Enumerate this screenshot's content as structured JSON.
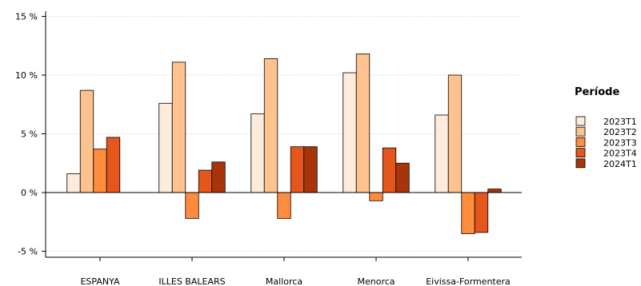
{
  "chart_data": {
    "type": "bar",
    "categories": [
      "ESPANYA",
      "ILLES BALEARS",
      "Mallorca",
      "Menorca",
      "Eivissa-Formentera"
    ],
    "series": [
      {
        "name": "2023T1",
        "color": "#fdebdc",
        "values": [
          1.6,
          7.6,
          6.7,
          10.2,
          6.6
        ]
      },
      {
        "name": "2023T2",
        "color": "#fdc28e",
        "values": [
          8.7,
          11.1,
          11.4,
          11.8,
          10.0
        ]
      },
      {
        "name": "2023T3",
        "color": "#fd8c3c",
        "values": [
          3.7,
          -2.2,
          -2.2,
          -0.7,
          -3.5
        ]
      },
      {
        "name": "2023T4",
        "color": "#e5561c",
        "values": [
          4.7,
          1.9,
          3.9,
          3.8,
          -3.4
        ]
      },
      {
        "name": "2024T1",
        "color": "#a83409",
        "values": [
          null,
          2.6,
          3.9,
          2.5,
          0.3
        ]
      }
    ],
    "yticks": [
      -5,
      0,
      5,
      10,
      15
    ],
    "ytick_labels": [
      "-5 %",
      "0 %",
      "5 %",
      "10 %",
      "15 %"
    ],
    "ylim": [
      -5.5,
      15.5
    ],
    "grid": true,
    "legend": {
      "title": "Període",
      "placement": "right"
    }
  }
}
